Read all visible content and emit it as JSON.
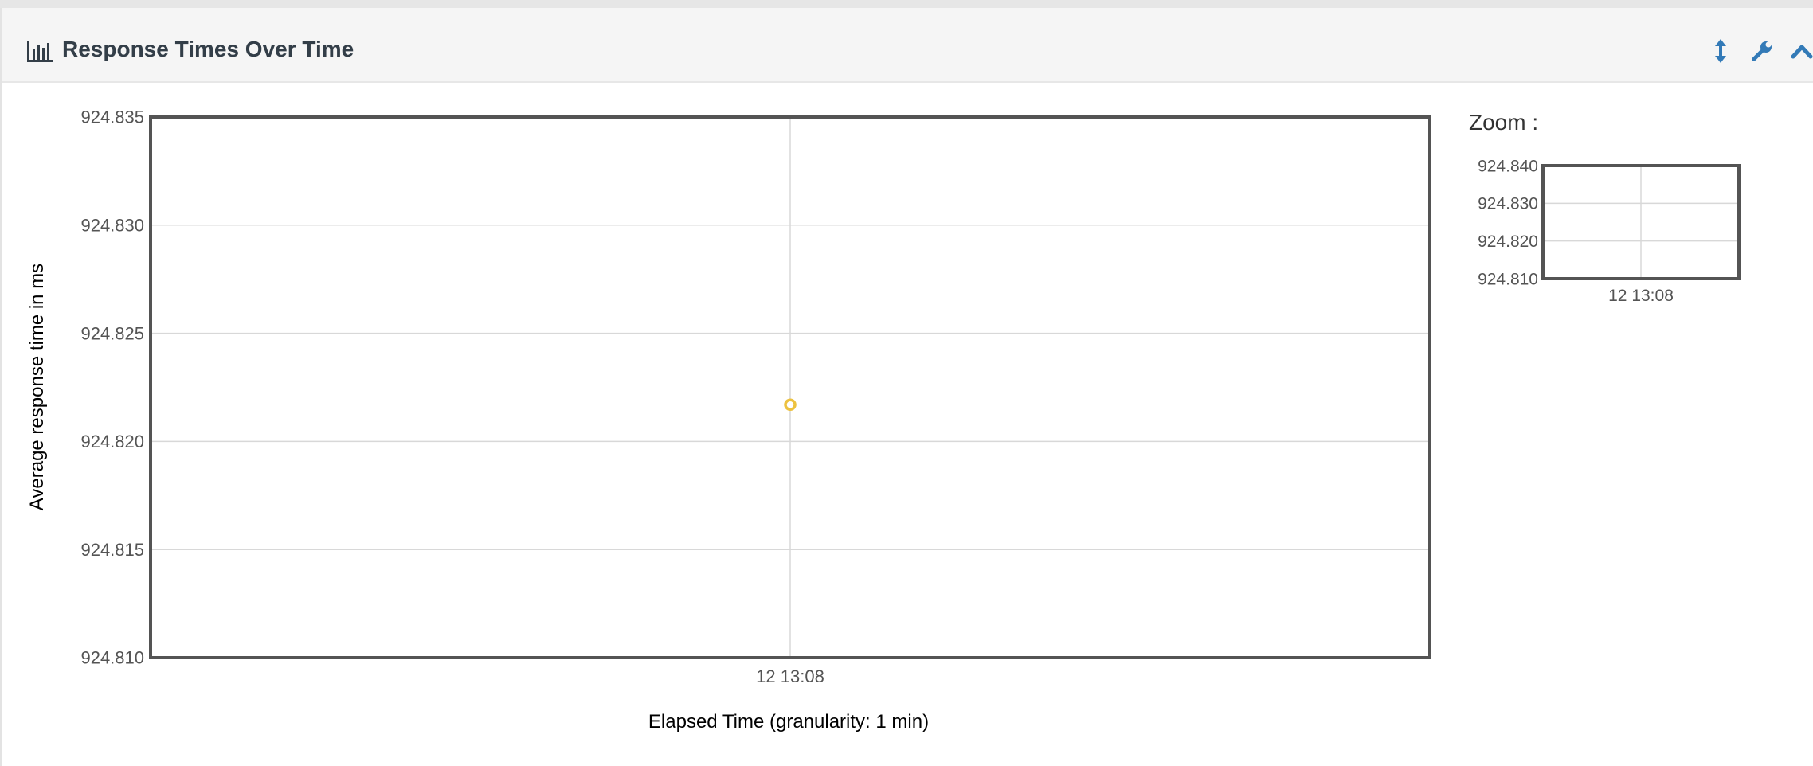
{
  "panel": {
    "title": "Response Times Over Time",
    "title_icon": "bar-chart-icon",
    "tools": [
      {
        "name": "resize-vertical-icon",
        "color": "#337ab7"
      },
      {
        "name": "wrench-icon",
        "color": "#337ab7"
      },
      {
        "name": "chevron-up-icon",
        "color": "#337ab7"
      }
    ]
  },
  "zoom": {
    "label": "Zoom :"
  },
  "chart_data": [
    {
      "type": "line",
      "role": "main",
      "ylabel": "Average response time in ms",
      "xlabel": "Elapsed Time (granularity: 1 min)",
      "ylim": [
        924.81,
        924.835
      ],
      "yticks": [
        "924.835",
        "924.830",
        "924.825",
        "924.820",
        "924.815",
        "924.810"
      ],
      "xticks": [
        "12 13:08"
      ],
      "grid": true,
      "series": [
        {
          "x": [
            "12 13:08"
          ],
          "values": [
            924.8217
          ],
          "color": "#edc240"
        }
      ]
    },
    {
      "type": "line",
      "role": "zoom-overview",
      "ylim": [
        924.81,
        924.84
      ],
      "yticks": [
        "924.840",
        "924.830",
        "924.820",
        "924.810"
      ],
      "xticks": [
        "12 13:08"
      ],
      "grid": true,
      "series": [
        {
          "x": [
            "12 13:08"
          ],
          "values": [
            924.8217
          ],
          "color": "#edc240"
        }
      ]
    }
  ]
}
